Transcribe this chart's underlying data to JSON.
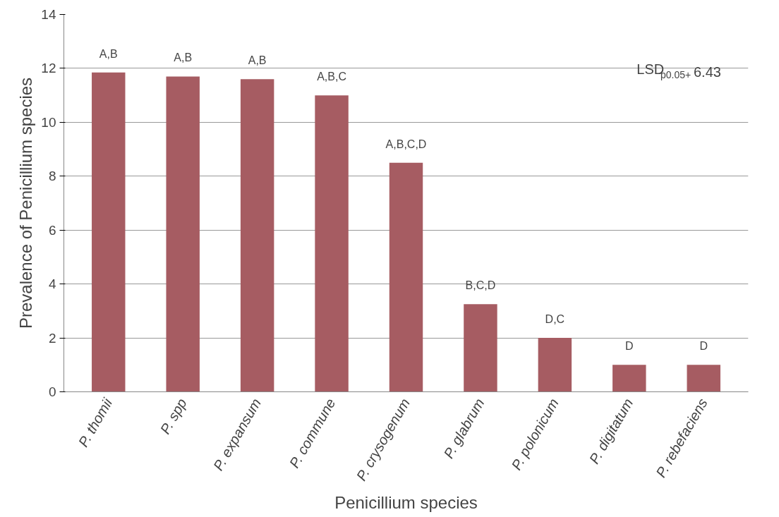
{
  "chart_data": {
    "type": "bar",
    "xlabel": "Penicillium species",
    "ylabel": "Prevalence of Penicillium species",
    "categories": [
      "P. thomii",
      "P. spp",
      "P. expansum",
      "P. commune",
      "P. crysogenum",
      "P. glabrum",
      "P. polonicum",
      "P. digitatum",
      "P. rebefaciens"
    ],
    "values": [
      11.85,
      11.7,
      11.6,
      11.0,
      8.5,
      3.25,
      2.0,
      1.0,
      1.0
    ],
    "color": "#a65c62",
    "ylim": [
      0,
      14
    ],
    "yticks": [
      0,
      2,
      4,
      6,
      8,
      10,
      12,
      14
    ],
    "grid": "y",
    "annotations": [
      {
        "text": "A,B",
        "x": "P. thomii",
        "y": 11.85
      },
      {
        "text": "A,B",
        "x": "P. spp",
        "y": 11.7
      },
      {
        "text": "A,B",
        "x": "P. expansum",
        "y": 11.6
      },
      {
        "text": "A,B,C",
        "x": "P. commune",
        "y": 11.0
      },
      {
        "text": "A,B,C,D",
        "x": "P. crysogenum",
        "y": 8.5
      },
      {
        "text": "B,C,D",
        "x": "P. glabrum",
        "y": 3.25
      },
      {
        "text": "D,C",
        "x": "P. polonicum",
        "y": 2.0
      },
      {
        "text": "D",
        "x": "P. digitatum",
        "y": 1.0
      },
      {
        "text": "D",
        "x": "P. rebefaciens",
        "y": 1.0
      },
      "LSD$_{p0.05+}$6.43"
    ]
  }
}
